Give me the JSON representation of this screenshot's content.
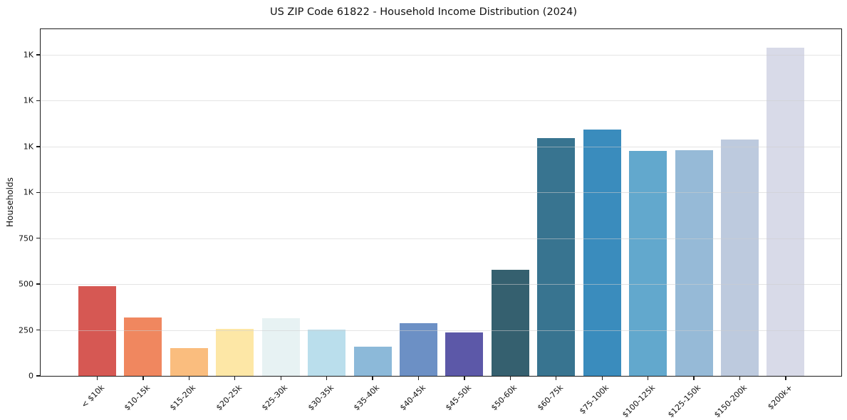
{
  "chart_data": {
    "type": "bar",
    "title": "US ZIP Code 61822 - Household Income Distribution (2024)",
    "xlabel": "",
    "ylabel": "Households",
    "categories": [
      "< $10k",
      "$10-15k",
      "$15-20k",
      "$20-25k",
      "$25-30k",
      "$30-35k",
      "$35-40k",
      "$40-45k",
      "$45-50k",
      "$50-60k",
      "$60-75k",
      "$75-100k",
      "$100-125k",
      "$125-150k",
      "$150-200k",
      "$200k+"
    ],
    "values": [
      490,
      320,
      150,
      258,
      316,
      252,
      158,
      288,
      236,
      580,
      1296,
      1344,
      1228,
      1232,
      1288,
      1790
    ],
    "bar_colors": [
      "#d65853",
      "#f0875f",
      "#fabd7e",
      "#fde7a6",
      "#e7f2f3",
      "#badeec",
      "#8cb9d9",
      "#6c90c5",
      "#5c58a8",
      "#35606f",
      "#387490",
      "#3a8cbd",
      "#62a8cd",
      "#96bad7",
      "#bdcade",
      "#d8dae8"
    ],
    "ylim": [
      0,
      1890
    ],
    "yticks": [
      {
        "value": 0,
        "label": "0"
      },
      {
        "value": 250,
        "label": "250"
      },
      {
        "value": 500,
        "label": "500"
      },
      {
        "value": 750,
        "label": "750"
      },
      {
        "value": 1000,
        "label": "1K"
      },
      {
        "value": 1250,
        "label": "1K"
      },
      {
        "value": 1500,
        "label": "1K"
      },
      {
        "value": 1750,
        "label": "1K"
      }
    ],
    "grid": "horizontal",
    "legend": "none",
    "background_color": "#ffffff",
    "gridline_color": "#e5e5e5",
    "axis_color": "#1c1c1c"
  }
}
